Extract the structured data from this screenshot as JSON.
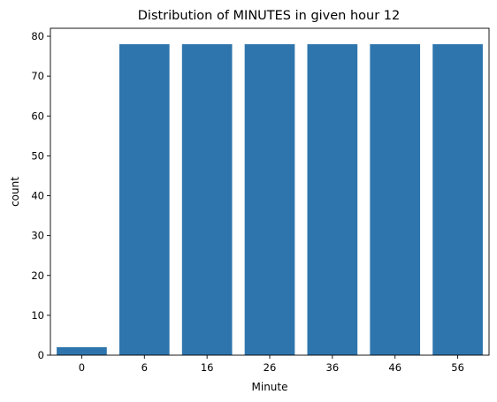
{
  "chart_data": {
    "type": "bar",
    "title": "Distribution of MINUTES in given hour 12",
    "xlabel": "Minute",
    "ylabel": "count",
    "categories": [
      "0",
      "6",
      "16",
      "26",
      "36",
      "46",
      "56"
    ],
    "values": [
      2,
      78,
      78,
      78,
      78,
      78,
      78
    ],
    "ylim": [
      0,
      82
    ],
    "yticks": [
      0,
      10,
      20,
      30,
      40,
      50,
      60,
      70,
      80
    ],
    "bar_color": "#2e75ad",
    "grid": false,
    "legend": "none"
  }
}
